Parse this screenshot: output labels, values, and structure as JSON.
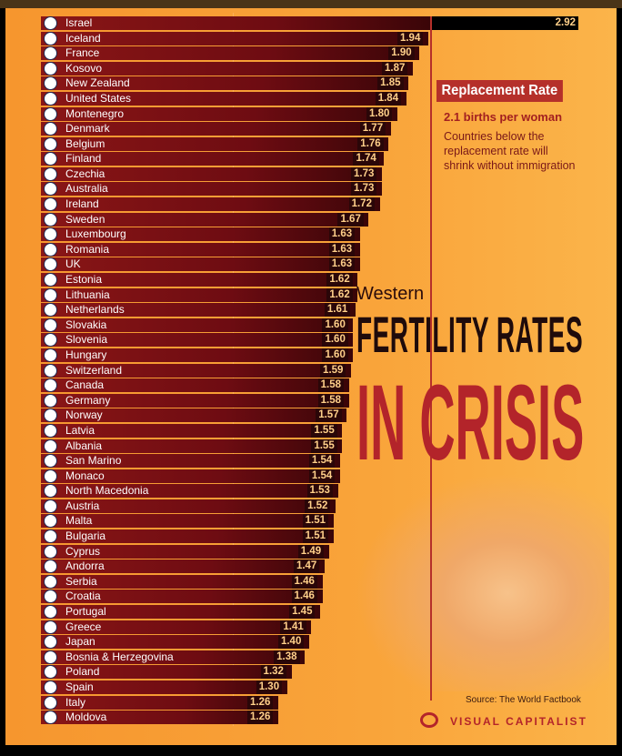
{
  "chart_data": {
    "type": "bar",
    "orientation": "horizontal",
    "title": "FERTILITY RATES IN CRISIS",
    "title_prefix": "Western",
    "categories": [
      "Israel",
      "Iceland",
      "France",
      "Kosovo",
      "New Zealand",
      "United States",
      "Montenegro",
      "Denmark",
      "Belgium",
      "Finland",
      "Czechia",
      "Australia",
      "Ireland",
      "Sweden",
      "Luxembourg",
      "Romania",
      "UK",
      "Estonia",
      "Lithuania",
      "Netherlands",
      "Slovakia",
      "Slovenia",
      "Hungary",
      "Switzerland",
      "Canada",
      "Germany",
      "Norway",
      "Latvia",
      "Albania",
      "San Marino",
      "Monaco",
      "North Macedonia",
      "Austria",
      "Malta",
      "Bulgaria",
      "Cyprus",
      "Andorra",
      "Serbia",
      "Croatia",
      "Portugal",
      "Greece",
      "Japan",
      "Bosnia & Herzegovina",
      "Poland",
      "Spain",
      "Italy",
      "Moldova"
    ],
    "values": [
      2.92,
      1.94,
      1.9,
      1.87,
      1.85,
      1.84,
      1.8,
      1.77,
      1.76,
      1.74,
      1.73,
      1.73,
      1.72,
      1.67,
      1.63,
      1.63,
      1.63,
      1.62,
      1.62,
      1.61,
      1.6,
      1.6,
      1.6,
      1.59,
      1.58,
      1.58,
      1.57,
      1.55,
      1.55,
      1.54,
      1.54,
      1.53,
      1.52,
      1.51,
      1.51,
      1.49,
      1.47,
      1.46,
      1.46,
      1.45,
      1.41,
      1.4,
      1.38,
      1.32,
      1.3,
      1.26,
      1.26
    ],
    "value_labels": [
      "2.92",
      "1.94",
      "1.90",
      "1.87",
      "1.85",
      "1.84",
      "1.80",
      "1.77",
      "1.76",
      "1.74",
      "1.73",
      "1.73",
      "1.72",
      "1.67",
      "1.63",
      "1.63",
      "1.63",
      "1.62",
      "1.62",
      "1.61",
      "1.60",
      "1.60",
      "1.60",
      "1.59",
      "1.58",
      "1.58",
      "1.57",
      "1.55",
      "1.55",
      "1.54",
      "1.54",
      "1.53",
      "1.52",
      "1.51",
      "1.51",
      "1.49",
      "1.47",
      "1.46",
      "1.46",
      "1.45",
      "1.41",
      "1.40",
      "1.38",
      "1.32",
      "1.30",
      "1.26",
      "1.26"
    ],
    "reference_line": {
      "label": "Replacement Rate",
      "value": 2.1
    },
    "colors": {
      "bar": "#7a0f14",
      "reference": "#b5302a",
      "background": "#f9a43a"
    }
  },
  "annotation": {
    "title": "Replacement Rate",
    "subtitle": "2.1 births per woman",
    "note": "Countries below the replacement rate will shrink without immigration"
  },
  "heading": {
    "prefix": "Western",
    "line1": "FERTILITY RATES",
    "line2": "IN CRISIS"
  },
  "source": "Source: The World Factbook",
  "brand": "VISUAL CAPITALIST"
}
